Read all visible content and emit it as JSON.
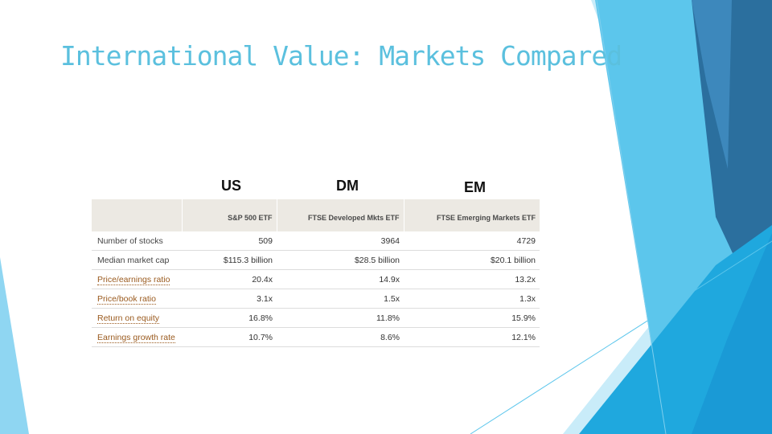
{
  "slide": {
    "title": "International Value: Markets Compared",
    "title_color": "#5bc0de",
    "accent_colors": [
      "#1a9ad6",
      "#2b6f9e",
      "#5cc6ec",
      "#a8def4",
      "#c9ecf9"
    ]
  },
  "regions": {
    "us": "US",
    "dm": "DM",
    "em": "EM"
  },
  "table": {
    "headers": [
      "",
      "S&P 500 ETF",
      "FTSE Developed Mkts ETF",
      "FTSE Emerging Markets ETF"
    ],
    "rows": [
      {
        "metric": "Number of stocks",
        "linked": false,
        "us": "509",
        "dm": "3964",
        "em": "4729"
      },
      {
        "metric": "Median market cap",
        "linked": false,
        "us": "$115.3 billion",
        "dm": "$28.5 billion",
        "em": "$20.1 billion"
      },
      {
        "metric": "Price/earnings ratio",
        "linked": true,
        "us": "20.4x",
        "dm": "14.9x",
        "em": "13.2x"
      },
      {
        "metric": "Price/book ratio",
        "linked": true,
        "us": "3.1x",
        "dm": "1.5x",
        "em": "1.3x"
      },
      {
        "metric": "Return on equity",
        "linked": true,
        "us": "16.8%",
        "dm": "11.8%",
        "em": "15.9%"
      },
      {
        "metric": "Earnings growth rate",
        "linked": true,
        "us": "10.7%",
        "dm": "8.6%",
        "em": "12.1%"
      }
    ],
    "link_color": "#9a5a1e"
  }
}
